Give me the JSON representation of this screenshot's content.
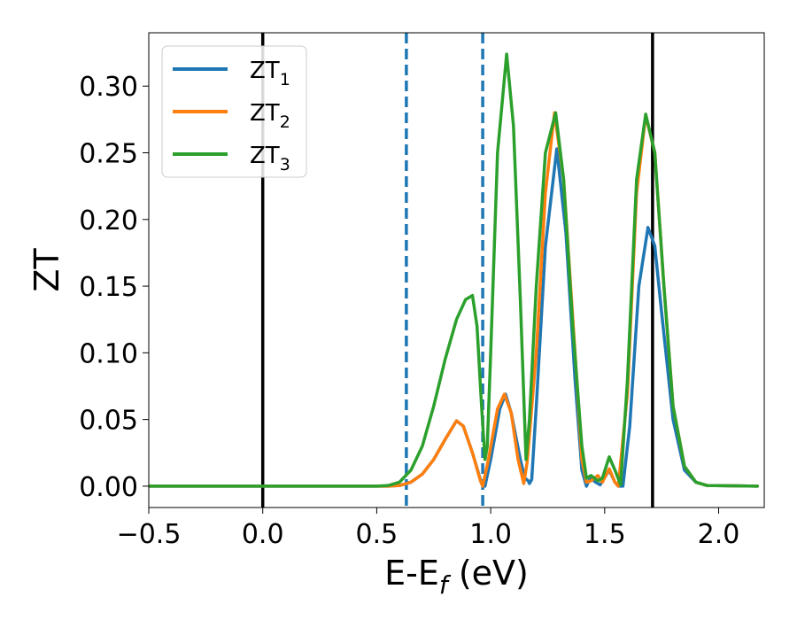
{
  "chart_data": {
    "type": "line",
    "xlabel": "E-E",
    "xlabel_sub": "f",
    "xlabel_unit": " (eV)",
    "ylabel": "ZT",
    "xlim": [
      -0.5,
      2.2
    ],
    "ylim": [
      -0.016,
      0.34
    ],
    "xticks": [
      -0.5,
      0.0,
      0.5,
      1.0,
      1.5,
      2.0
    ],
    "xtick_labels": [
      "−0.5",
      "0.0",
      "0.5",
      "1.0",
      "1.5",
      "2.0"
    ],
    "yticks": [
      0.0,
      0.05,
      0.1,
      0.15,
      0.2,
      0.25,
      0.3
    ],
    "ytick_labels": [
      "0.00",
      "0.05",
      "0.10",
      "0.15",
      "0.20",
      "0.25",
      "0.30"
    ],
    "grid": false,
    "legend_position": "top-left",
    "vlines": [
      {
        "x": 0.0,
        "style": "solid",
        "color": "#000000"
      },
      {
        "x": 1.71,
        "style": "solid",
        "color": "#000000"
      },
      {
        "x": 0.63,
        "style": "dashed",
        "color": "#1f77b4"
      },
      {
        "x": 0.965,
        "style": "dashed",
        "color": "#1f77b4"
      }
    ],
    "series": [
      {
        "name": "ZT",
        "name_sub": "1",
        "color": "#1f77b4",
        "points": [
          [
            -0.5,
            0
          ],
          [
            0.55,
            0
          ],
          [
            0.6,
            0.0005
          ],
          [
            0.65,
            0.003
          ],
          [
            0.7,
            0.009
          ],
          [
            0.75,
            0.02
          ],
          [
            0.8,
            0.035
          ],
          [
            0.85,
            0.049
          ],
          [
            0.88,
            0.045
          ],
          [
            0.92,
            0.025
          ],
          [
            0.96,
            0.002
          ],
          [
            0.975,
            0
          ],
          [
            1.0,
            0.02
          ],
          [
            1.04,
            0.058
          ],
          [
            1.065,
            0.069
          ],
          [
            1.09,
            0.055
          ],
          [
            1.13,
            0.02
          ],
          [
            1.15,
            0.006
          ],
          [
            1.165,
            0.004
          ],
          [
            1.17,
            0.002
          ],
          [
            1.18,
            0.005
          ],
          [
            1.2,
            0.06
          ],
          [
            1.24,
            0.18
          ],
          [
            1.29,
            0.253
          ],
          [
            1.33,
            0.19
          ],
          [
            1.37,
            0.08
          ],
          [
            1.4,
            0.012
          ],
          [
            1.42,
            0
          ],
          [
            1.43,
            0.004
          ],
          [
            1.44,
            0.006
          ],
          [
            1.46,
            0.003
          ],
          [
            1.48,
            0.001
          ],
          [
            1.52,
            0.012
          ],
          [
            1.545,
            0.003
          ],
          [
            1.56,
            0
          ],
          [
            1.58,
            0
          ],
          [
            1.61,
            0.045
          ],
          [
            1.65,
            0.15
          ],
          [
            1.69,
            0.194
          ],
          [
            1.72,
            0.18
          ],
          [
            1.75,
            0.13
          ],
          [
            1.8,
            0.05
          ],
          [
            1.85,
            0.012
          ],
          [
            1.9,
            0.003
          ],
          [
            1.95,
            0.0005
          ],
          [
            2.17,
            0
          ]
        ]
      },
      {
        "name": "ZT",
        "name_sub": "2",
        "color": "#ff7f0e",
        "points": [
          [
            -0.5,
            0
          ],
          [
            0.55,
            0
          ],
          [
            0.6,
            0.0005
          ],
          [
            0.65,
            0.003
          ],
          [
            0.7,
            0.009
          ],
          [
            0.75,
            0.02
          ],
          [
            0.8,
            0.035
          ],
          [
            0.85,
            0.049
          ],
          [
            0.88,
            0.045
          ],
          [
            0.92,
            0.025
          ],
          [
            0.955,
            0.004
          ],
          [
            0.965,
            0
          ],
          [
            0.99,
            0.02
          ],
          [
            1.03,
            0.058
          ],
          [
            1.06,
            0.069
          ],
          [
            1.09,
            0.055
          ],
          [
            1.12,
            0.02
          ],
          [
            1.145,
            0.002
          ],
          [
            1.16,
            0.018
          ],
          [
            1.2,
            0.1
          ],
          [
            1.24,
            0.22
          ],
          [
            1.28,
            0.28
          ],
          [
            1.32,
            0.23
          ],
          [
            1.37,
            0.1
          ],
          [
            1.4,
            0.02
          ],
          [
            1.42,
            0.003
          ],
          [
            1.44,
            0.004
          ],
          [
            1.47,
            0.008
          ],
          [
            1.49,
            0.003
          ],
          [
            1.52,
            0.013
          ],
          [
            1.545,
            0.003
          ],
          [
            1.56,
            0
          ],
          [
            1.6,
            0.07
          ],
          [
            1.64,
            0.22
          ],
          [
            1.68,
            0.278
          ],
          [
            1.72,
            0.25
          ],
          [
            1.76,
            0.15
          ],
          [
            1.8,
            0.06
          ],
          [
            1.85,
            0.015
          ],
          [
            1.9,
            0.003
          ],
          [
            1.95,
            0.0005
          ],
          [
            2.17,
            0
          ]
        ]
      },
      {
        "name": "ZT",
        "name_sub": "3",
        "color": "#2ca02c",
        "points": [
          [
            -0.5,
            0
          ],
          [
            0.5,
            0
          ],
          [
            0.55,
            0.0005
          ],
          [
            0.6,
            0.003
          ],
          [
            0.65,
            0.012
          ],
          [
            0.7,
            0.03
          ],
          [
            0.75,
            0.06
          ],
          [
            0.8,
            0.095
          ],
          [
            0.85,
            0.125
          ],
          [
            0.89,
            0.14
          ],
          [
            0.92,
            0.143
          ],
          [
            0.94,
            0.12
          ],
          [
            0.96,
            0.06
          ],
          [
            0.975,
            0.02
          ],
          [
            0.985,
            0.03
          ],
          [
            1.0,
            0.1
          ],
          [
            1.03,
            0.25
          ],
          [
            1.07,
            0.324
          ],
          [
            1.1,
            0.27
          ],
          [
            1.13,
            0.14
          ],
          [
            1.155,
            0.02
          ],
          [
            1.17,
            0.05
          ],
          [
            1.2,
            0.15
          ],
          [
            1.24,
            0.25
          ],
          [
            1.285,
            0.28
          ],
          [
            1.32,
            0.23
          ],
          [
            1.36,
            0.12
          ],
          [
            1.4,
            0.03
          ],
          [
            1.42,
            0.006
          ],
          [
            1.44,
            0.008
          ],
          [
            1.47,
            0.004
          ],
          [
            1.49,
            0.006
          ],
          [
            1.52,
            0.022
          ],
          [
            1.55,
            0.01
          ],
          [
            1.57,
            0.001
          ],
          [
            1.6,
            0.08
          ],
          [
            1.64,
            0.23
          ],
          [
            1.68,
            0.279
          ],
          [
            1.72,
            0.25
          ],
          [
            1.76,
            0.15
          ],
          [
            1.8,
            0.06
          ],
          [
            1.85,
            0.015
          ],
          [
            1.9,
            0.003
          ],
          [
            1.95,
            0.0005
          ],
          [
            2.17,
            0
          ]
        ]
      }
    ]
  }
}
